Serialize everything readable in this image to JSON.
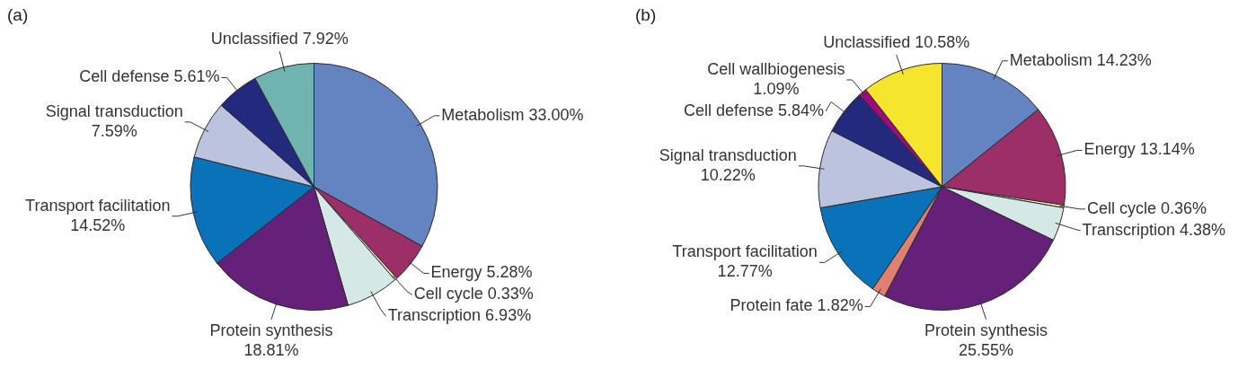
{
  "chart_data": [
    {
      "type": "pie",
      "title": "(a)",
      "categories": [
        "Metabolism",
        "Energy",
        "Cell cycle",
        "Transcription",
        "Protein synthesis",
        "Transport facilitation",
        "Signal transduction",
        "Cell defense",
        "Unclassified"
      ],
      "values": [
        33.0,
        5.28,
        0.33,
        6.93,
        18.81,
        14.52,
        7.59,
        5.61,
        7.92
      ],
      "value_labels": [
        "33.00%",
        "5.28%",
        "0.33%",
        "6.93%",
        "18.81%",
        "14.52%",
        "7.59%",
        "5.61%",
        "7.92%"
      ],
      "colors": [
        "#6384c0",
        "#9c2f68",
        "#ecebc0",
        "#d6e8e6",
        "#65207a",
        "#0a72b8",
        "#bcc3df",
        "#232a7e",
        "#70b4b0"
      ]
    },
    {
      "type": "pie",
      "title": "(b)",
      "categories": [
        "Metabolism",
        "Energy",
        "Cell cycle",
        "Transcription",
        "Protein synthesis",
        "Protein fate",
        "Transport facilitation",
        "Signal transduction",
        "Cell defense",
        "Cell wallbiogenesis",
        "Unclassified"
      ],
      "values": [
        14.23,
        13.14,
        0.36,
        4.38,
        25.55,
        1.82,
        12.77,
        10.22,
        5.84,
        1.09,
        10.58
      ],
      "value_labels": [
        "14.23%",
        "13.14%",
        "0.36%",
        "4.38%",
        "25.55%",
        "1.82%",
        "12.77%",
        "10.22%",
        "5.84%",
        "1.09%",
        "10.58%"
      ],
      "colors": [
        "#6384c0",
        "#9c2f68",
        "#ecebc0",
        "#d6e8e6",
        "#65207a",
        "#e08070",
        "#0a72b8",
        "#bcc3df",
        "#232a7e",
        "#a0087e",
        "#f5e52c"
      ]
    }
  ]
}
